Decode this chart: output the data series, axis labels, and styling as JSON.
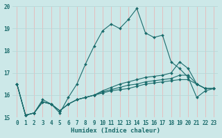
{
  "xlabel": "Humidex (Indice chaleur)",
  "bg_color": "#cce8e8",
  "line_color": "#1a6b6b",
  "xlim": [
    -0.5,
    23.5
  ],
  "ylim": [
    15.0,
    20.0
  ],
  "yticks": [
    15,
    16,
    17,
    18,
    19,
    20
  ],
  "xticks": [
    0,
    1,
    2,
    3,
    4,
    5,
    6,
    7,
    8,
    9,
    10,
    11,
    12,
    13,
    14,
    15,
    16,
    17,
    18,
    19,
    20,
    21,
    22,
    23
  ],
  "series": [
    {
      "x": [
        0,
        1,
        2,
        3,
        4,
        5,
        6,
        7,
        8,
        9,
        10,
        11,
        12,
        13,
        14,
        15,
        16,
        17,
        18,
        19,
        20,
        21,
        22,
        23
      ],
      "y": [
        16.5,
        15.1,
        15.2,
        15.8,
        15.6,
        15.2,
        15.9,
        16.5,
        17.4,
        18.2,
        18.9,
        19.2,
        19.0,
        19.4,
        19.9,
        18.8,
        18.6,
        18.7,
        17.5,
        17.2,
        16.8,
        15.9,
        16.2,
        16.3
      ]
    },
    {
      "x": [
        0,
        1,
        2,
        3,
        4,
        5,
        6,
        7,
        8,
        9,
        10,
        11,
        12,
        13,
        14,
        15,
        16,
        17,
        18,
        19,
        20,
        21,
        22,
        23
      ],
      "y": [
        16.5,
        15.1,
        15.2,
        15.7,
        15.6,
        15.3,
        15.6,
        15.8,
        15.9,
        16.0,
        16.1,
        16.2,
        16.25,
        16.3,
        16.4,
        16.5,
        16.55,
        16.6,
        16.65,
        16.7,
        16.7,
        16.5,
        16.3,
        16.3
      ]
    },
    {
      "x": [
        0,
        1,
        2,
        3,
        4,
        5,
        6,
        7,
        8,
        9,
        10,
        11,
        12,
        13,
        14,
        15,
        16,
        17,
        18,
        19,
        20,
        21,
        22,
        23
      ],
      "y": [
        16.5,
        15.1,
        15.2,
        15.7,
        15.6,
        15.3,
        15.6,
        15.8,
        15.9,
        16.0,
        16.15,
        16.25,
        16.35,
        16.45,
        16.5,
        16.6,
        16.65,
        16.7,
        16.75,
        16.9,
        16.9,
        16.5,
        16.3,
        16.3
      ]
    },
    {
      "x": [
        0,
        1,
        2,
        3,
        4,
        5,
        6,
        7,
        8,
        9,
        10,
        11,
        12,
        13,
        14,
        15,
        16,
        17,
        18,
        19,
        20,
        21,
        22,
        23
      ],
      "y": [
        16.5,
        15.1,
        15.2,
        15.7,
        15.6,
        15.3,
        15.6,
        15.8,
        15.9,
        16.0,
        16.2,
        16.35,
        16.5,
        16.6,
        16.7,
        16.8,
        16.85,
        16.9,
        17.0,
        17.5,
        17.2,
        16.5,
        16.3,
        16.3
      ]
    }
  ]
}
